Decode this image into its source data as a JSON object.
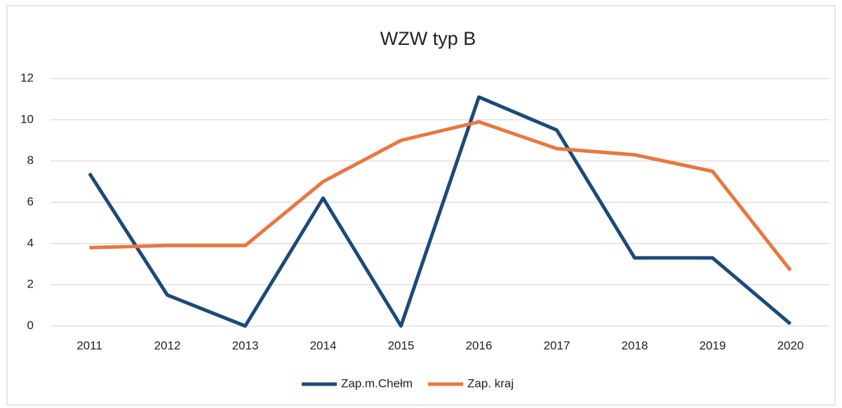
{
  "chart_data": {
    "type": "line",
    "title": "WZW typ B",
    "categories": [
      "2011",
      "2012",
      "2013",
      "2014",
      "2015",
      "2016",
      "2017",
      "2018",
      "2019",
      "2020"
    ],
    "series": [
      {
        "name": "Zap.m.Chełm",
        "color": "#1c4a78",
        "values": [
          7.4,
          1.5,
          0,
          6.2,
          0,
          11.1,
          9.5,
          3.3,
          3.3,
          0.1
        ]
      },
      {
        "name": "Zap. kraj",
        "color": "#e8773f",
        "values": [
          3.8,
          3.9,
          3.9,
          7.0,
          9.0,
          9.9,
          8.6,
          8.3,
          7.5,
          2.7
        ]
      }
    ],
    "ylim": [
      0,
      12
    ],
    "yticks": [
      0,
      2,
      4,
      6,
      8,
      10,
      12
    ],
    "grid": true,
    "legend": "bottom"
  }
}
